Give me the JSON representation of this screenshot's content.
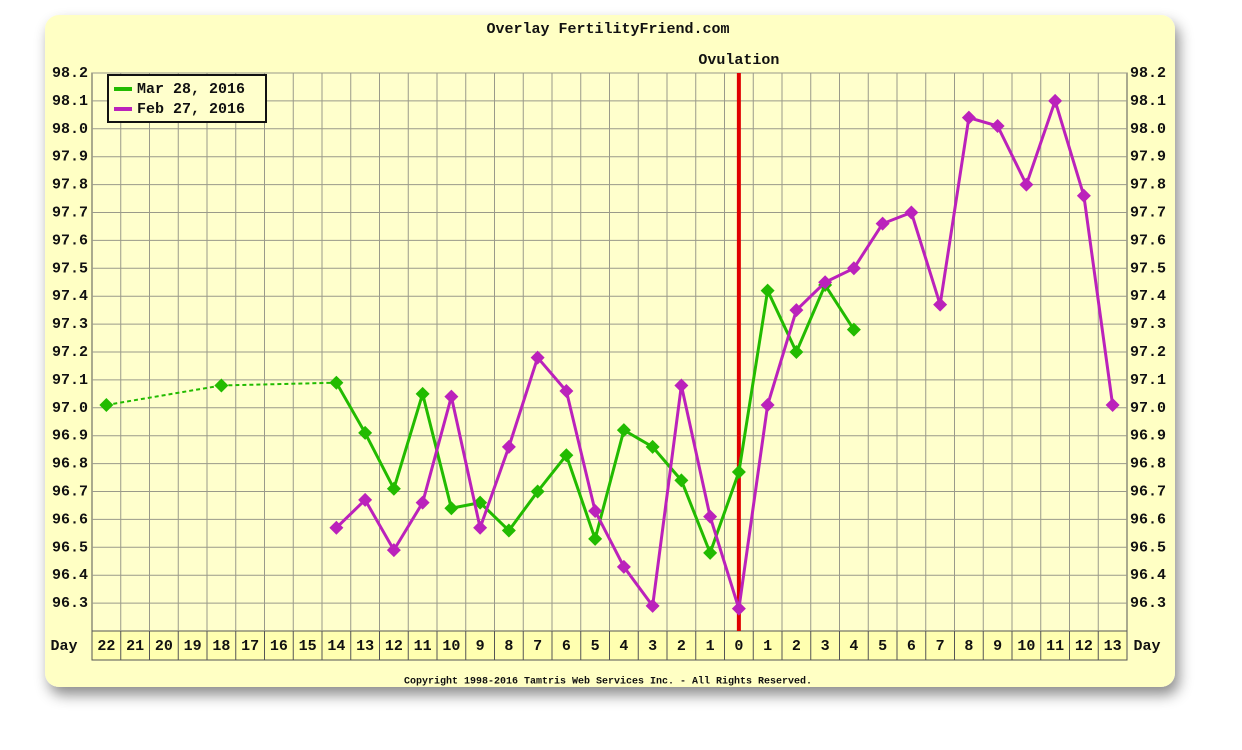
{
  "chart_data": {
    "type": "line",
    "title": "Overlay FertilityFriend.com",
    "x_label": "Day",
    "footer": "Copyright 1998-2016 Tamtris Web Services Inc. - All Rights Reserved.",
    "categories": [
      "22",
      "21",
      "20",
      "19",
      "18",
      "17",
      "16",
      "15",
      "14",
      "13",
      "12",
      "11",
      "10",
      "9",
      "8",
      "7",
      "6",
      "5",
      "4",
      "3",
      "2",
      "1",
      "0",
      "1",
      "2",
      "3",
      "4",
      "5",
      "6",
      "7",
      "8",
      "9",
      "10",
      "11",
      "12",
      "13"
    ],
    "vline": {
      "label": "Ovulation",
      "x_index": 22,
      "color": "#e00000"
    },
    "series": [
      {
        "name": "Mar 28, 2016",
        "color": "#22bb00",
        "values": [
          97.01,
          null,
          null,
          null,
          97.08,
          null,
          null,
          null,
          97.09,
          96.91,
          96.71,
          97.05,
          96.64,
          96.66,
          96.56,
          96.7,
          96.83,
          96.53,
          96.92,
          96.86,
          96.74,
          96.48,
          96.77,
          97.42,
          97.2,
          97.44,
          97.28,
          null,
          null,
          null,
          null,
          null,
          null,
          null,
          null,
          null
        ]
      },
      {
        "name": "Feb 27, 2016",
        "color": "#bb22bb",
        "values": [
          null,
          null,
          null,
          null,
          null,
          null,
          null,
          null,
          96.57,
          96.67,
          96.49,
          96.66,
          97.04,
          96.57,
          96.86,
          97.18,
          97.06,
          96.63,
          96.43,
          96.29,
          97.08,
          96.61,
          96.28,
          97.01,
          97.35,
          97.45,
          97.5,
          97.66,
          97.7,
          97.37,
          98.04,
          98.01,
          97.8,
          98.1,
          97.76,
          97.01
        ]
      }
    ],
    "ylim": [
      96.2,
      98.2
    ],
    "yticks": [
      96.3,
      96.4,
      96.5,
      96.6,
      96.7,
      96.8,
      96.9,
      {
        "value": 97,
        "label": "97.0"
      },
      97.1,
      97.2,
      97.3,
      97.4,
      97.5,
      97.6,
      97.7,
      97.8,
      97.9,
      {
        "value": 98,
        "label": "98.0"
      },
      98.1,
      98.2
    ],
    "grid": true,
    "legend": "top-left"
  }
}
